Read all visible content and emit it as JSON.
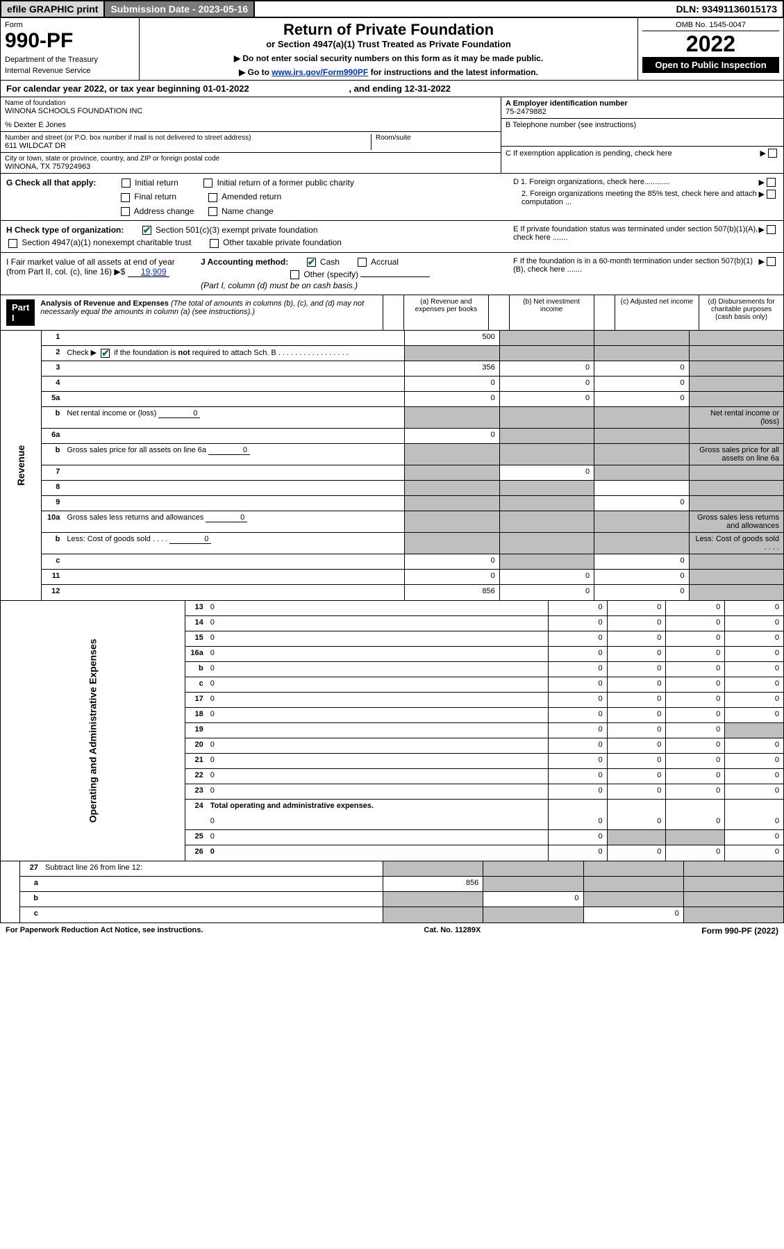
{
  "top": {
    "efile": "efile GRAPHIC print",
    "submission": "Submission Date - 2023-05-16",
    "dln": "DLN: 93491136015173"
  },
  "header": {
    "form_word": "Form",
    "form_num": "990-PF",
    "dept": "Department of the Treasury",
    "irs": "Internal Revenue Service",
    "title": "Return of Private Foundation",
    "subtitle": "or Section 4947(a)(1) Trust Treated as Private Foundation",
    "note1": "▶ Do not enter social security numbers on this form as it may be made public.",
    "note2_pre": "▶ Go to ",
    "note2_link": "www.irs.gov/Form990PF",
    "note2_post": " for instructions and the latest information.",
    "omb": "OMB No. 1545-0047",
    "year": "2022",
    "open": "Open to Public Inspection"
  },
  "calyear": {
    "text_pre": "For calendar year 2022, or tax year beginning ",
    "begin": "01-01-2022",
    "mid": " , and ending ",
    "end": "12-31-2022"
  },
  "info": {
    "name_label": "Name of foundation",
    "name": "WINONA SCHOOLS FOUNDATION INC",
    "care_of": "% Dexter E Jones",
    "addr_label": "Number and street (or P.O. box number if mail is not delivered to street address)",
    "addr": "611 WILDCAT DR",
    "room_label": "Room/suite",
    "city_label": "City or town, state or province, country, and ZIP or foreign postal code",
    "city": "WINONA, TX  757924963",
    "ein_label": "A Employer identification number",
    "ein": "75-2479882",
    "phone_label": "B Telephone number (see instructions)",
    "c_label": "C If exemption application is pending, check here",
    "d1": "D 1. Foreign organizations, check here............",
    "d2": "2. Foreign organizations meeting the 85% test, check here and attach computation ...",
    "e_label": "E  If private foundation status was terminated under section 507(b)(1)(A), check here .......",
    "f_label": "F  If the foundation is in a 60-month termination under section 507(b)(1)(B), check here ......."
  },
  "checks": {
    "g_label": "G Check all that apply:",
    "initial": "Initial return",
    "initial_former": "Initial return of a former public charity",
    "final": "Final return",
    "amended": "Amended return",
    "address": "Address change",
    "name": "Name change",
    "h_label": "H Check type of organization:",
    "h1": "Section 501(c)(3) exempt private foundation",
    "h2": "Section 4947(a)(1) nonexempt charitable trust",
    "h3": "Other taxable private foundation",
    "i_label": "I Fair market value of all assets at end of year (from Part II, col. (c), line 16) ▶$ ",
    "i_value": "19,909",
    "j_label": "J Accounting method:",
    "j_cash": "Cash",
    "j_accrual": "Accrual",
    "j_other": "Other (specify)",
    "j_note": "(Part I, column (d) must be on cash basis.)"
  },
  "part1": {
    "label": "Part I",
    "title": "Analysis of Revenue and Expenses",
    "title_note": " (The total of amounts in columns (b), (c), and (d) may not necessarily equal the amounts in column (a) (see instructions).)",
    "col_a": "(a)   Revenue and expenses per books",
    "col_b": "(b)   Net investment income",
    "col_c": "(c)   Adjusted net income",
    "col_d": "(d)   Disbursements for charitable purposes (cash basis only)"
  },
  "side_labels": {
    "revenue": "Revenue",
    "expenses": "Operating and Administrative Expenses"
  },
  "lines": {
    "1": {
      "n": "1",
      "d": "",
      "a": "500",
      "b": "",
      "c": "",
      "sb": true,
      "sc": true,
      "sd": true
    },
    "2": {
      "n": "2",
      "d": "",
      "a": "",
      "b": "",
      "c": "",
      "sa": true,
      "sb": true,
      "sc": true,
      "sd": true
    },
    "2text": "Check ▶",
    "2text2": " if the foundation is ",
    "2not": "not",
    "2text3": " required to attach Sch. B   .  .  .  .  .  .  .  .  .  .  .  .  .  .  .  .  .",
    "3": {
      "n": "3",
      "d": "",
      "a": "356",
      "b": "0",
      "c": "0",
      "sd": true
    },
    "4": {
      "n": "4",
      "d": "",
      "a": "0",
      "b": "0",
      "c": "0",
      "sd": true
    },
    "5a": {
      "n": "5a",
      "d": "",
      "a": "0",
      "b": "0",
      "c": "0",
      "sd": true
    },
    "5b": {
      "n": "b",
      "d": "Net rental income or (loss)",
      "v": "0",
      "sa": true,
      "sb": true,
      "sc": true,
      "sd": true
    },
    "6a": {
      "n": "6a",
      "d": "",
      "a": "0",
      "b": "",
      "c": "",
      "sb": true,
      "sc": true,
      "sd": true
    },
    "6b": {
      "n": "b",
      "d": "Gross sales price for all assets on line 6a",
      "v": "0",
      "sa": true,
      "sb": true,
      "sc": true,
      "sd": true
    },
    "7": {
      "n": "7",
      "d": "",
      "a": "",
      "b": "0",
      "c": "",
      "sa": true,
      "sc": true,
      "sd": true
    },
    "8": {
      "n": "8",
      "d": "",
      "a": "",
      "b": "",
      "c": "",
      "sa": true,
      "sb": true,
      "sd": true
    },
    "9": {
      "n": "9",
      "d": "",
      "a": "",
      "b": "",
      "c": "0",
      "sa": true,
      "sb": true,
      "sd": true
    },
    "10a": {
      "n": "10a",
      "d": "Gross sales less returns and allowances",
      "v": "0",
      "sa": true,
      "sb": true,
      "sc": true,
      "sd": true
    },
    "10b": {
      "n": "b",
      "d": "Less: Cost of goods sold   .   .   .   .",
      "v": "0",
      "sa": true,
      "sb": true,
      "sc": true,
      "sd": true
    },
    "10c": {
      "n": "c",
      "d": "",
      "a": "0",
      "b": "",
      "c": "0",
      "sb": true,
      "sd": true
    },
    "11": {
      "n": "11",
      "d": "",
      "a": "0",
      "b": "0",
      "c": "0",
      "sd": true
    },
    "12": {
      "n": "12",
      "d": "",
      "bold": true,
      "a": "856",
      "b": "0",
      "c": "0",
      "sd": true
    },
    "13": {
      "n": "13",
      "d": "0",
      "a": "0",
      "b": "0",
      "c": "0"
    },
    "14": {
      "n": "14",
      "d": "0",
      "a": "0",
      "b": "0",
      "c": "0"
    },
    "15": {
      "n": "15",
      "d": "0",
      "a": "0",
      "b": "0",
      "c": "0"
    },
    "16a": {
      "n": "16a",
      "d": "0",
      "a": "0",
      "b": "0",
      "c": "0"
    },
    "16b": {
      "n": "b",
      "d": "0",
      "a": "0",
      "b": "0",
      "c": "0"
    },
    "16c": {
      "n": "c",
      "d": "0",
      "a": "0",
      "b": "0",
      "c": "0"
    },
    "17": {
      "n": "17",
      "d": "0",
      "a": "0",
      "b": "0",
      "c": "0"
    },
    "18": {
      "n": "18",
      "d": "0",
      "a": "0",
      "b": "0",
      "c": "0"
    },
    "19": {
      "n": "19",
      "d": "",
      "a": "0",
      "b": "0",
      "c": "0",
      "sd": true
    },
    "20": {
      "n": "20",
      "d": "0",
      "a": "0",
      "b": "0",
      "c": "0"
    },
    "21": {
      "n": "21",
      "d": "0",
      "a": "0",
      "b": "0",
      "c": "0"
    },
    "22": {
      "n": "22",
      "d": "0",
      "a": "0",
      "b": "0",
      "c": "0"
    },
    "23": {
      "n": "23",
      "d": "0",
      "a": "0",
      "b": "0",
      "c": "0"
    },
    "24": {
      "n": "24",
      "d": "Total operating and administrative expenses.",
      "bold": true
    },
    "24b": {
      "d": "0",
      "a": "0",
      "b": "0",
      "c": "0"
    },
    "25": {
      "n": "25",
      "d": "0",
      "a": "0",
      "b": "",
      "c": "",
      "sb": true,
      "sc": true
    },
    "26": {
      "n": "26",
      "d": "0",
      "bold": true,
      "a": "0",
      "b": "0",
      "c": "0"
    },
    "27": {
      "n": "27",
      "d": "Subtract line 26 from line 12:",
      "sa": true,
      "sb": true,
      "sc": true,
      "sd": true
    },
    "27a": {
      "n": "a",
      "d": "",
      "bold": true,
      "a": "856",
      "b": "",
      "c": "",
      "sb": true,
      "sc": true,
      "sd": true
    },
    "27b": {
      "n": "b",
      "d": "",
      "bold": true,
      "a": "",
      "b": "0",
      "c": "",
      "sa": true,
      "sc": true,
      "sd": true
    },
    "27c": {
      "n": "c",
      "d": "",
      "bold": true,
      "a": "",
      "b": "",
      "c": "0",
      "sa": true,
      "sb": true,
      "sd": true
    }
  },
  "footer": {
    "left": "For Paperwork Reduction Act Notice, see instructions.",
    "center": "Cat. No. 11289X",
    "right": "Form 990-PF (2022)"
  }
}
